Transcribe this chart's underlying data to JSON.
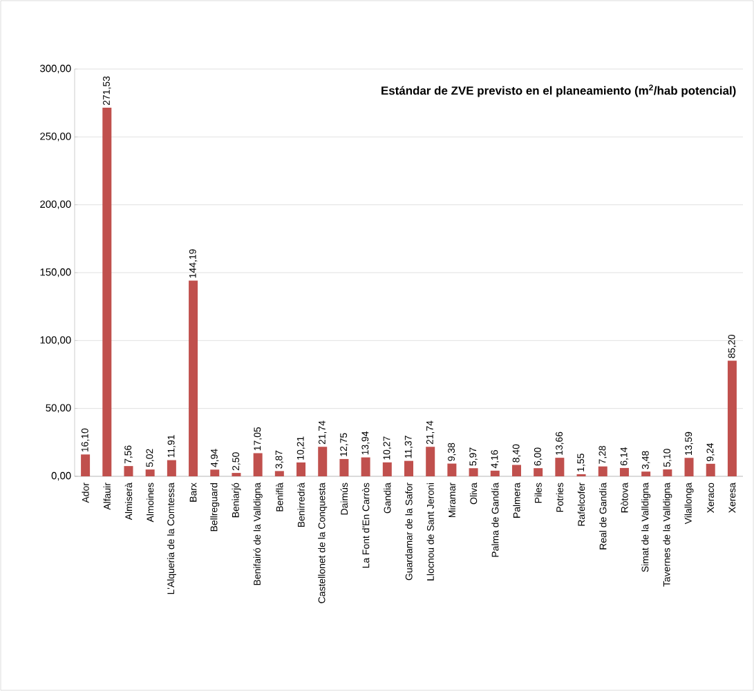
{
  "chart_data": {
    "type": "bar",
    "title": "Estándar de ZVE previsto en el planeamiento (m$^{2}$/hab potencial)",
    "categories": [
      "Ador",
      "Alfauir",
      "Almiserà",
      "Almoines",
      "L'Alqueria de la Comtessa",
      "Barx",
      "Bellreguard",
      "Beniarjó",
      "Benifairó de la Valldigna",
      "Beniflà",
      "Benirredrà",
      "Castellonet de la Conquesta",
      "Daimús",
      "La Font d'En Carròs",
      "Gandia",
      "Guardamar de la Safor",
      "Llocnou de Sant Jeroni",
      "Miramar",
      "Oliva",
      "Palma de Gandía",
      "Palmera",
      "Piles",
      "Potries",
      "Rafelcofer",
      "Real de Gandía",
      "Ròtova",
      "Simat de la Valldigna",
      "Tavernes de la Valldigna",
      "Vilallonga",
      "Xeraco",
      "Xeresa"
    ],
    "values": [
      16.1,
      271.53,
      7.56,
      5.02,
      11.91,
      144.19,
      4.94,
      2.5,
      17.05,
      3.87,
      10.21,
      21.74,
      12.75,
      13.94,
      10.27,
      11.37,
      21.74,
      9.38,
      5.97,
      4.16,
      8.4,
      6.0,
      13.66,
      1.55,
      7.28,
      6.14,
      3.48,
      5.1,
      13.59,
      9.24,
      85.2
    ],
    "value_labels": [
      "16,10",
      "271,53",
      "7,56",
      "5,02",
      "11,91",
      "144,19",
      "4,94",
      "2,50",
      "17,05",
      "3,87",
      "10,21",
      "21,74",
      "12,75",
      "13,94",
      "10,27",
      "11,37",
      "21,74",
      "9,38",
      "5,97",
      "4,16",
      "8,40",
      "6,00",
      "13,66",
      "1,55",
      "7,28",
      "6,14",
      "3,48",
      "5,10",
      "13,59",
      "9,24",
      "85,20"
    ],
    "color": "#c0504d",
    "ylim": [
      0,
      300
    ],
    "yticks": [
      {
        "value": 0,
        "label": "0,00"
      },
      {
        "value": 50,
        "label": "50,00"
      },
      {
        "value": 100,
        "label": "100,00"
      },
      {
        "value": 150,
        "label": "150,00"
      },
      {
        "value": 200,
        "label": "200,00"
      },
      {
        "value": 250,
        "label": "250,00"
      },
      {
        "value": 300,
        "label": "300,00"
      }
    ],
    "grid": "y"
  }
}
